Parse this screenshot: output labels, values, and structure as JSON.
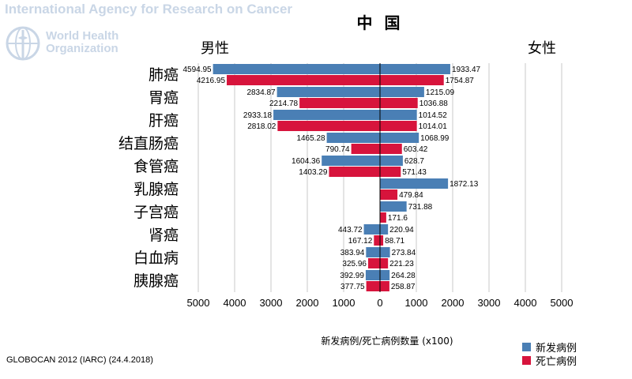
{
  "header": {
    "agency": "International Agency for Research on Cancer",
    "who_line1": "World Health",
    "who_line2": "Organization"
  },
  "footer": {
    "source": "GLOBOCAN 2012 (IARC) (24.4.2018)"
  },
  "colors": {
    "incidence": "#4a7fb5",
    "mortality": "#d7143c",
    "grid": "#c8c8c8"
  },
  "chart_data": {
    "type": "bar",
    "orientation": "horizontal-pyramid",
    "title": "中 国",
    "left_label": "男性",
    "right_label": "女性",
    "xlabel": "新发病例/死亡病例数量 (x100)",
    "xlim": [
      -5000,
      5000
    ],
    "xticks": [
      5000,
      4000,
      3000,
      2000,
      1000,
      0,
      1000,
      2000,
      3000,
      4000,
      5000
    ],
    "grid": true,
    "legend_position": "bottom-right",
    "categories": [
      "肺癌",
      "胃癌",
      "肝癌",
      "结直肠癌",
      "食管癌",
      "乳腺癌",
      "子宫癌",
      "肾癌",
      "白血病",
      "胰腺癌"
    ],
    "series": [
      {
        "name": "新发病例",
        "side": "male",
        "values": [
          4594.95,
          2834.87,
          2933.18,
          1465.28,
          1604.36,
          null,
          null,
          443.72,
          383.94,
          392.99
        ],
        "labels": [
          "4594.95",
          "2834.87",
          "2933.18",
          "1465.28",
          "1604.36",
          "",
          "",
          "443.72",
          "383.94",
          "392.99"
        ]
      },
      {
        "name": "死亡病例",
        "side": "male",
        "values": [
          4216.95,
          2214.78,
          2818.02,
          790.74,
          1403.29,
          null,
          null,
          167.12,
          325.96,
          377.75
        ],
        "labels": [
          "4216.95",
          "2214.78",
          "2818.02",
          "790.74",
          "1403.29",
          "",
          "",
          "167.12",
          "325.96",
          "377.75"
        ]
      },
      {
        "name": "新发病例",
        "side": "female",
        "values": [
          1933.47,
          1215.09,
          1014.52,
          1068.99,
          628.7,
          1872.13,
          731.88,
          220.94,
          273.84,
          264.28
        ],
        "labels": [
          "1933.47",
          "1215.09",
          "1014.52",
          "1068.99",
          "628.7",
          "1872.13",
          "731.88",
          "220.94",
          "273.84",
          "264.28"
        ]
      },
      {
        "name": "死亡病例",
        "side": "female",
        "values": [
          1754.87,
          1036.88,
          1014.01,
          603.42,
          571.43,
          479.84,
          171.6,
          88.71,
          221.23,
          258.87
        ],
        "labels": [
          "1754.87",
          "1036.88",
          "1014.01",
          "603.42",
          "571.43",
          "479.84",
          "171.6",
          "88.71",
          "221.23",
          "258.87"
        ]
      }
    ]
  },
  "legend": [
    {
      "label": "新发病例",
      "color": "#4a7fb5"
    },
    {
      "label": "死亡病例",
      "color": "#d7143c"
    }
  ]
}
